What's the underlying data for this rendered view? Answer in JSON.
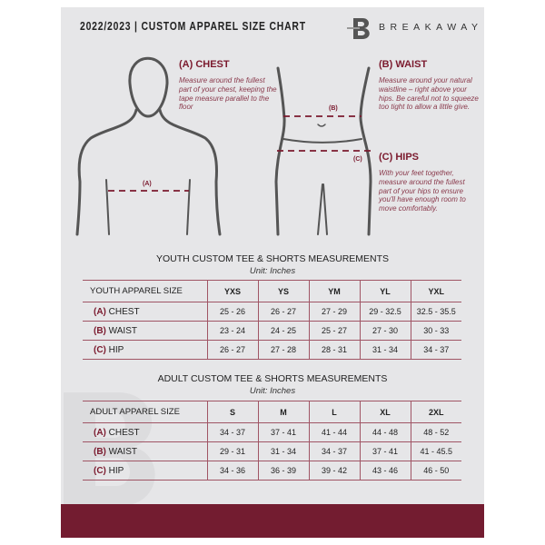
{
  "header": {
    "title": "2022/2023  |  CUSTOM APPAREL SIZE CHART",
    "brand": "BREAKAWAY",
    "logo_letter": "B"
  },
  "colors": {
    "accent": "#731c30",
    "panel": "#e6e6e8"
  },
  "measures": {
    "chest": {
      "title": "(A) CHEST",
      "desc": "Measure around the fullest part of your chest, keeping the tape measure parallel to the floor",
      "marker": "(A)"
    },
    "waist": {
      "title": "(B) WAIST",
      "desc": "Measure around your natural waistline – right above your hips. Be careful not to squeeze too tight to allow a little give.",
      "marker": "(B)"
    },
    "hips": {
      "title": "(C) HIPS",
      "desc": "With your feet together, measure around the fullest part of your hips to ensure you'll have enough room to move comfortably.",
      "marker": "(C)"
    }
  },
  "youth": {
    "title": "YOUTH CUSTOM TEE & SHORTS MEASUREMENTS",
    "unit": "Unit: Inches",
    "header": "YOUTH APPAREL SIZE",
    "sizes": [
      "YXS",
      "YS",
      "YM",
      "YL",
      "YXL"
    ],
    "rows": [
      {
        "l": "(A)",
        "n": "CHEST",
        "v": [
          "25 - 26",
          "26 - 27",
          "27 - 29",
          "29 - 32.5",
          "32.5 - 35.5"
        ]
      },
      {
        "l": "(B)",
        "n": "WAIST",
        "v": [
          "23 - 24",
          "24 - 25",
          "25 - 27",
          "27 - 30",
          "30 - 33"
        ]
      },
      {
        "l": "(C)",
        "n": "HIP",
        "v": [
          "26 - 27",
          "27 - 28",
          "28 - 31",
          "31 - 34",
          "34 - 37"
        ]
      }
    ]
  },
  "adult": {
    "title": "ADULT CUSTOM TEE & SHORTS MEASUREMENTS",
    "unit": "Unit: Inches",
    "header": "ADULT APPAREL SIZE",
    "sizes": [
      "S",
      "M",
      "L",
      "XL",
      "2XL"
    ],
    "rows": [
      {
        "l": "(A)",
        "n": "CHEST",
        "v": [
          "34 - 37",
          "37 - 41",
          "41 - 44",
          "44 - 48",
          "48 - 52"
        ]
      },
      {
        "l": "(B)",
        "n": "WAIST",
        "v": [
          "29 - 31",
          "31 - 34",
          "34 - 37",
          "37 - 41",
          "41 - 45.5"
        ]
      },
      {
        "l": "(C)",
        "n": "HIP",
        "v": [
          "34 - 36",
          "36 - 39",
          "39 - 42",
          "43 - 46",
          "46 - 50"
        ]
      }
    ]
  }
}
